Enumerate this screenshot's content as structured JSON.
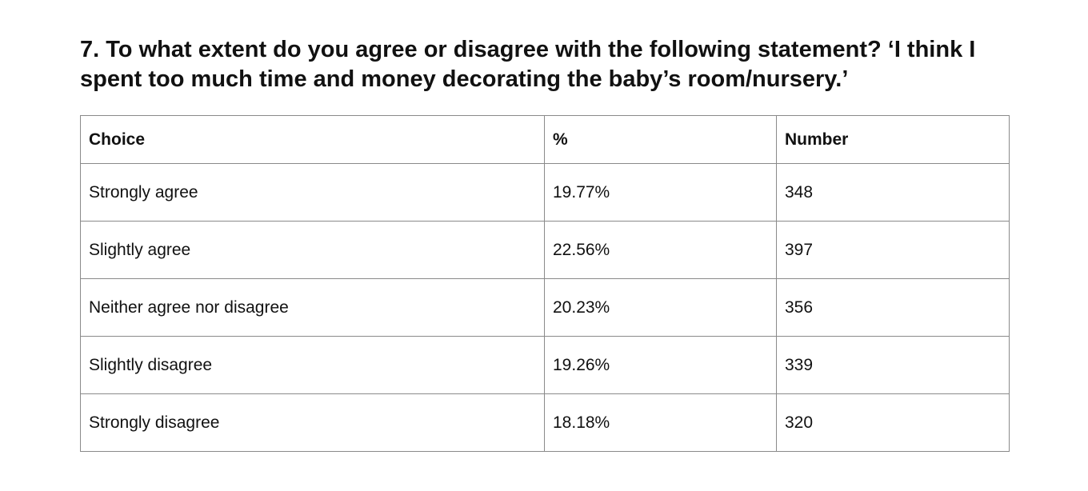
{
  "question": {
    "title": "7. To what extent do you agree or disagree with the following statement? ‘I think I spent too much time and money decorating the baby’s room/nursery.’"
  },
  "table": {
    "headers": {
      "choice": "Choice",
      "percent": "%",
      "number": "Number"
    },
    "rows": [
      {
        "choice": "Strongly agree",
        "percent": "19.77%",
        "number": "348"
      },
      {
        "choice": "Slightly agree",
        "percent": "22.56%",
        "number": "397"
      },
      {
        "choice": "Neither agree nor disagree",
        "percent": "20.23%",
        "number": "356"
      },
      {
        "choice": "Slightly disagree",
        "percent": "19.26%",
        "number": "339"
      },
      {
        "choice": "Strongly disagree",
        "percent": "18.18%",
        "number": "320"
      }
    ]
  }
}
